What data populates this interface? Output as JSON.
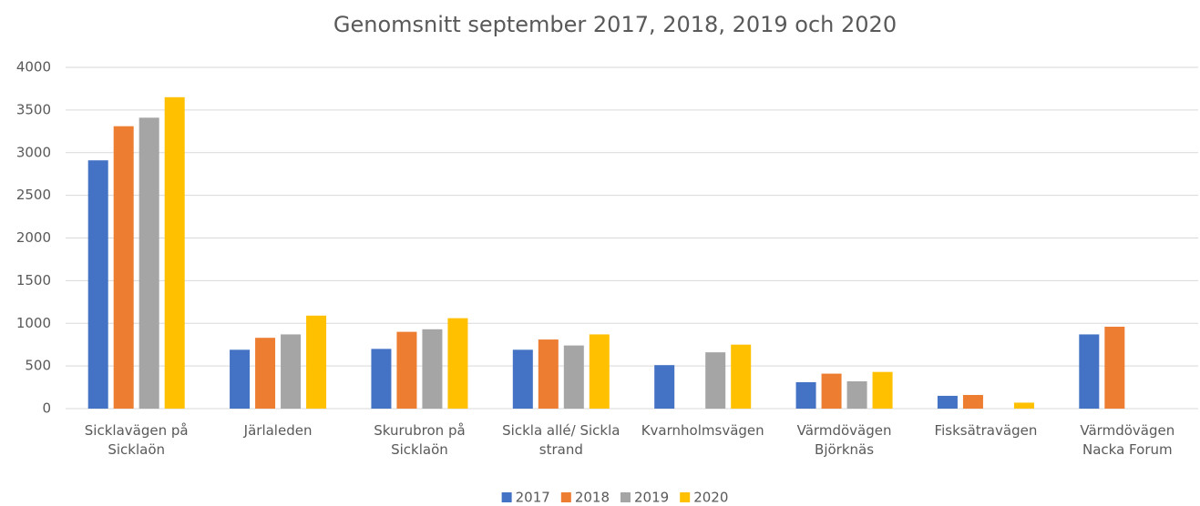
{
  "chart_data": {
    "type": "bar",
    "title": "Genomsnitt september 2017, 2018, 2019 och 2020",
    "categories": [
      "Sicklavägen på Sicklaön",
      "Järlaleden",
      "Skurubron på Sicklaön",
      "Sickla allé/ Sickla strand",
      "Kvarnholmsvägen",
      "Värmdövägen Björknäs",
      "Fisksätravägen",
      "Värmdövägen Nacka Forum"
    ],
    "series": [
      {
        "name": "2017",
        "color": "#4472c4",
        "values": [
          2910,
          690,
          700,
          690,
          510,
          310,
          150,
          870
        ]
      },
      {
        "name": "2018",
        "color": "#ed7d31",
        "values": [
          3310,
          830,
          900,
          810,
          null,
          410,
          160,
          960
        ]
      },
      {
        "name": "2019",
        "color": "#a5a5a5",
        "values": [
          3410,
          870,
          930,
          740,
          660,
          320,
          null,
          null
        ]
      },
      {
        "name": "2020",
        "color": "#ffc000",
        "values": [
          3650,
          1090,
          1060,
          870,
          750,
          430,
          70,
          null
        ]
      }
    ],
    "ylim": [
      0,
      4000
    ],
    "yticks": [
      0,
      500,
      1000,
      1500,
      2000,
      2500,
      3000,
      3500,
      4000
    ],
    "grid": true,
    "legend": "bottom"
  }
}
